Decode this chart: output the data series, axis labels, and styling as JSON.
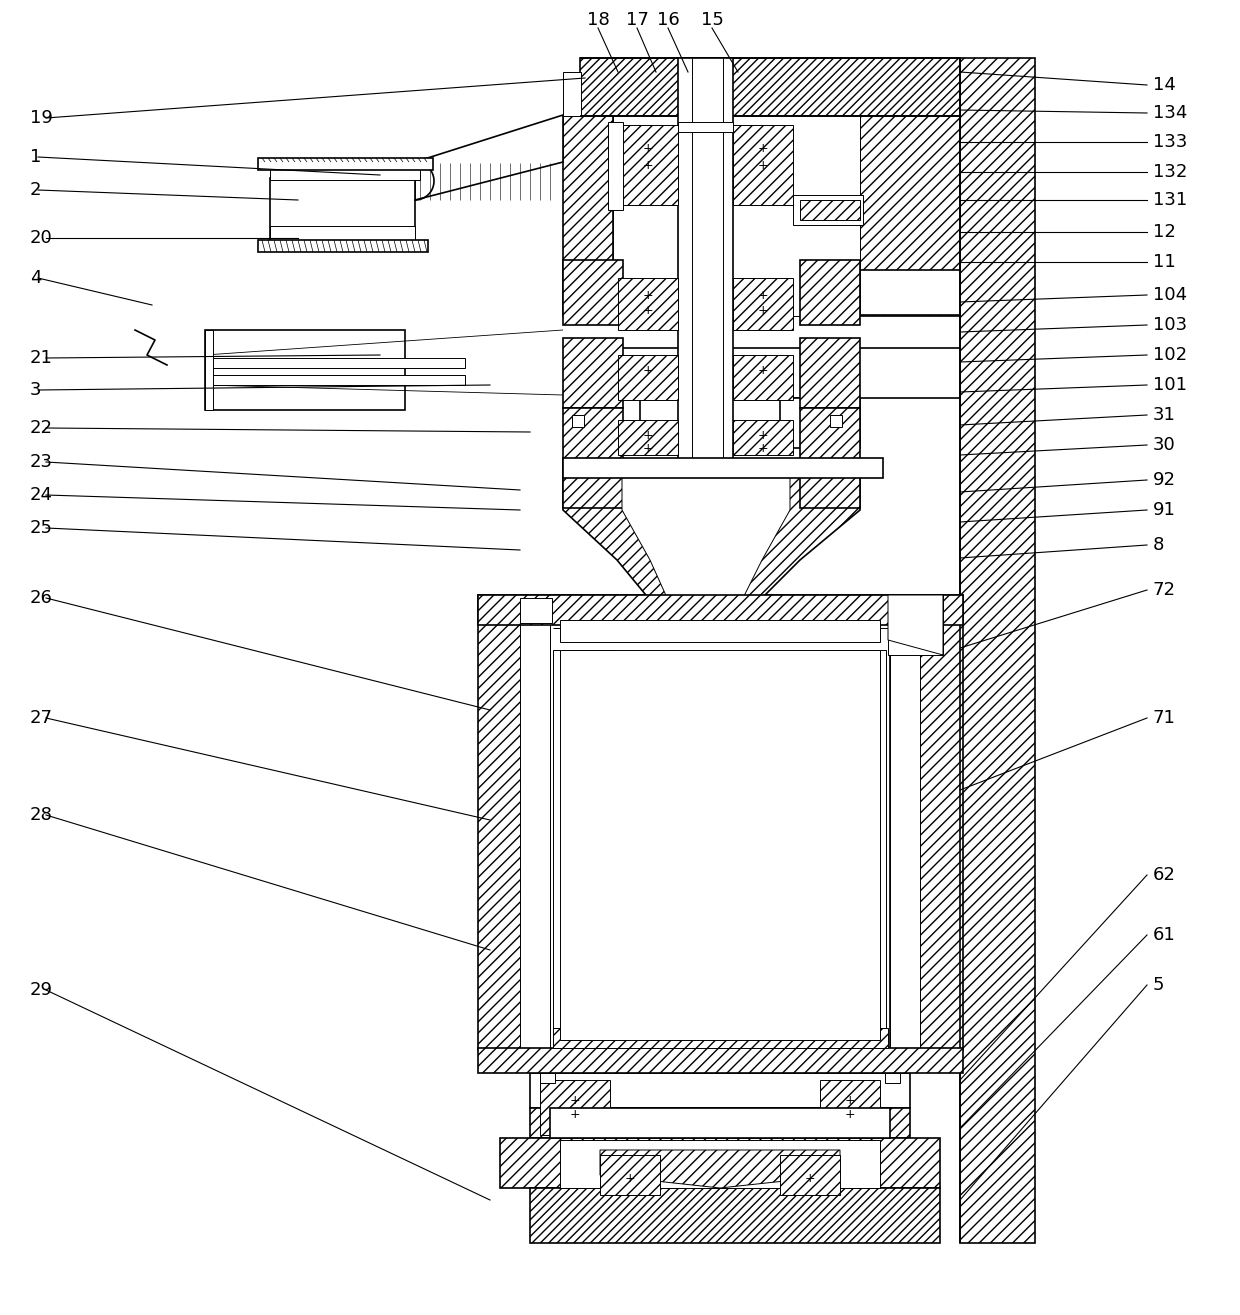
{
  "bg_color": "#ffffff",
  "line_color": "#000000",
  "figsize": [
    12.4,
    13.15
  ],
  "dpi": 100,
  "lw_main": 1.2,
  "lw_thin": 0.7,
  "lw_callout": 0.8,
  "fs_label": 13,
  "hatch_dense": "////",
  "hatch_medium": "///",
  "hatch_cross": "xxx",
  "left_labels": [
    [
      "19",
      30,
      118,
      585,
      78
    ],
    [
      "1",
      30,
      157,
      380,
      175
    ],
    [
      "2",
      30,
      190,
      298,
      200
    ],
    [
      "20",
      30,
      238,
      298,
      238
    ],
    [
      "4",
      30,
      278,
      152,
      305
    ],
    [
      "21",
      30,
      358,
      380,
      355
    ],
    [
      "3",
      30,
      390,
      490,
      385
    ],
    [
      "22",
      30,
      428,
      530,
      432
    ],
    [
      "23",
      30,
      462,
      520,
      490
    ],
    [
      "24",
      30,
      495,
      520,
      510
    ],
    [
      "25",
      30,
      528,
      520,
      550
    ],
    [
      "26",
      30,
      598,
      490,
      710
    ],
    [
      "27",
      30,
      718,
      490,
      820
    ],
    [
      "28",
      30,
      815,
      490,
      950
    ],
    [
      "29",
      30,
      990,
      490,
      1200
    ]
  ],
  "right_labels": [
    [
      "14",
      1150,
      85,
      960,
      72
    ],
    [
      "134",
      1150,
      113,
      960,
      110
    ],
    [
      "133",
      1150,
      142,
      960,
      142
    ],
    [
      "132",
      1150,
      172,
      960,
      172
    ],
    [
      "131",
      1150,
      200,
      960,
      200
    ],
    [
      "12",
      1150,
      232,
      960,
      232
    ],
    [
      "11",
      1150,
      262,
      960,
      262
    ],
    [
      "104",
      1150,
      295,
      960,
      302
    ],
    [
      "103",
      1150,
      325,
      960,
      332
    ],
    [
      "102",
      1150,
      355,
      960,
      362
    ],
    [
      "101",
      1150,
      385,
      960,
      392
    ],
    [
      "31",
      1150,
      415,
      960,
      425
    ],
    [
      "30",
      1150,
      445,
      960,
      455
    ],
    [
      "92",
      1150,
      480,
      960,
      492
    ],
    [
      "91",
      1150,
      510,
      960,
      522
    ],
    [
      "8",
      1150,
      545,
      960,
      558
    ],
    [
      "72",
      1150,
      590,
      960,
      648
    ],
    [
      "71",
      1150,
      718,
      960,
      790
    ],
    [
      "62",
      1150,
      875,
      960,
      1080
    ],
    [
      "61",
      1150,
      935,
      960,
      1128
    ],
    [
      "5",
      1150,
      985,
      960,
      1200
    ]
  ],
  "top_labels": [
    [
      "18",
      598,
      20,
      618,
      72
    ],
    [
      "17",
      637,
      20,
      656,
      72
    ],
    [
      "16",
      668,
      20,
      688,
      72
    ],
    [
      "15",
      712,
      20,
      738,
      72
    ]
  ]
}
